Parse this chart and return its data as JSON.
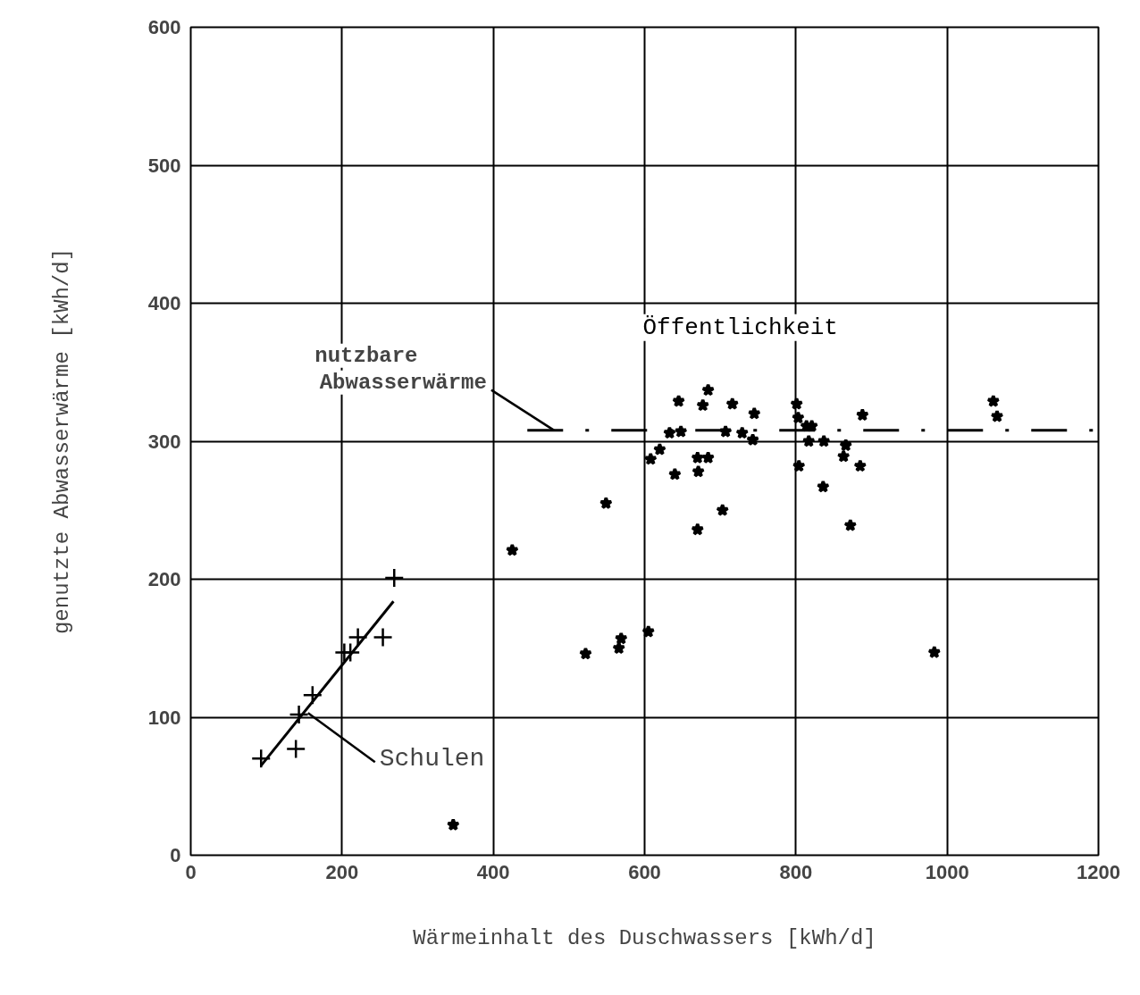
{
  "chart_data": {
    "type": "scatter",
    "xlabel": "Wärmeinhalt des Duschwassers [kWh/d]",
    "ylabel": "genutzte Abwasserwärme [kWh/d]",
    "xlim": [
      0,
      1200
    ],
    "ylim": [
      0,
      600
    ],
    "xticks": [
      0,
      200,
      400,
      600,
      800,
      1000,
      1200
    ],
    "yticks": [
      0,
      100,
      200,
      300,
      400,
      500,
      600
    ],
    "grid": true,
    "series": [
      {
        "color": "#000000",
        "marker": "cross",
        "x": [
          93,
          139,
          143,
          161,
          203,
          211,
          221,
          254,
          269
        ],
        "values": [
          70,
          77,
          102,
          116,
          147,
          147,
          158,
          158,
          201
        ]
      },
      {
        "type": "line",
        "color": "#000000",
        "marker": "none",
        "line_style": "solid",
        "x": [
          93,
          268
        ],
        "values": [
          65,
          184
        ]
      },
      {
        "name": "Öffentlichkeit",
        "color": "#000000",
        "marker": "star",
        "x": [
          347,
          425,
          549,
          522,
          566,
          569,
          605,
          608,
          620,
          640,
          633,
          648,
          645,
          670,
          684,
          671,
          670,
          677,
          684,
          703,
          707,
          716,
          729,
          745,
          743,
          801,
          803,
          814,
          821,
          817,
          837,
          804,
          836,
          866,
          863,
          885,
          888,
          872,
          983,
          1061,
          1066
        ],
        "values": [
          22,
          221,
          255,
          146,
          150,
          157,
          162,
          287,
          294,
          276,
          306,
          307,
          329,
          288,
          288,
          278,
          236,
          326,
          337,
          250,
          307,
          327,
          306,
          320,
          301,
          327,
          317,
          311,
          311,
          300,
          300,
          282,
          267,
          297,
          289,
          282,
          319,
          239,
          147,
          329,
          318
        ]
      },
      {
        "type": "line",
        "color": "#000000",
        "marker": "none",
        "line_style": "dashed",
        "x": [
          445,
          1200
        ],
        "values": [
          308,
          308
        ]
      }
    ],
    "annotations": [
      {
        "text": "nutzbare\nAbwasserwärme",
        "x": 480,
        "y": 308
      },
      {
        "text": "Schulen",
        "x": 155,
        "y": 103
      }
    ]
  }
}
